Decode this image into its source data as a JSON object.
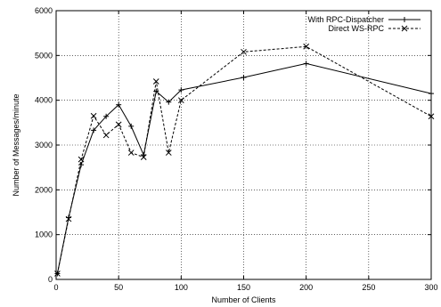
{
  "chart_data": {
    "type": "line",
    "title": "",
    "xlabel": "Number of Clients",
    "ylabel": "Number of Messages/minute",
    "xlim": [
      0,
      300
    ],
    "ylim": [
      0,
      6000
    ],
    "x_ticks": [
      0,
      50,
      100,
      150,
      200,
      250,
      300
    ],
    "y_ticks": [
      0,
      1000,
      2000,
      3000,
      4000,
      5000,
      6000
    ],
    "grid": true,
    "legend_position": "top-right",
    "series": [
      {
        "name": "With RPC-Dispatcher",
        "line_style": "solid",
        "marker": "plus",
        "color": "#000000",
        "x": [
          1,
          10,
          20,
          30,
          40,
          50,
          60,
          70,
          80,
          90,
          100,
          150,
          200,
          300
        ],
        "y": [
          130,
          1380,
          2560,
          3330,
          3640,
          3900,
          3420,
          2780,
          4200,
          3960,
          4230,
          4510,
          4820,
          4150
        ]
      },
      {
        "name": "Direct WS-RPC",
        "line_style": "dashed",
        "marker": "x",
        "color": "#000000",
        "x": [
          1,
          10,
          20,
          30,
          40,
          50,
          60,
          70,
          80,
          90,
          100,
          150,
          200,
          300
        ],
        "y": [
          130,
          1350,
          2680,
          3650,
          3220,
          3460,
          2830,
          2730,
          4420,
          2830,
          4000,
          5080,
          5200,
          3640
        ]
      }
    ]
  }
}
